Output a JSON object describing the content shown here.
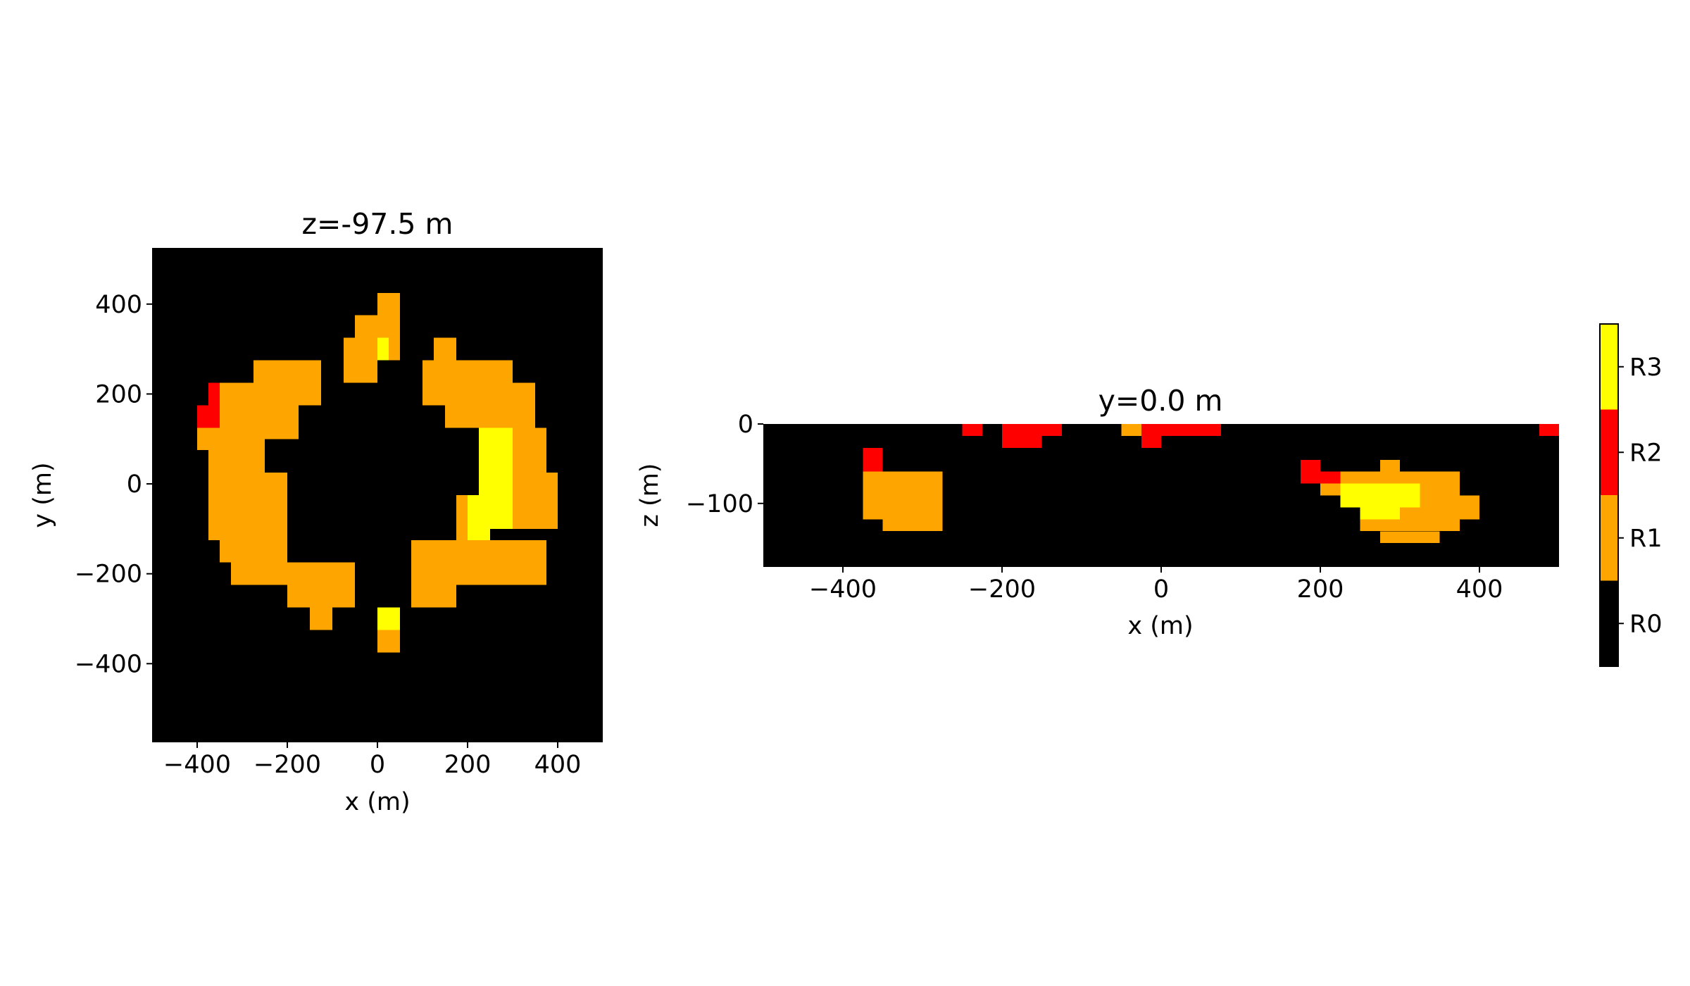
{
  "chart_data": [
    {
      "type": "heatmap",
      "title": "z=-97.5 m",
      "xlabel": "x (m)",
      "ylabel": "y (m)",
      "xlim": [
        -500,
        500
      ],
      "ylim": [
        -575,
        525
      ],
      "xticks": [
        -400,
        -200,
        0,
        200,
        400
      ],
      "yticks": [
        -400,
        -200,
        0,
        200,
        400
      ],
      "cell_size": 50,
      "cells": [
        {
          "x": [
            0,
            50
          ],
          "y": [
            350,
            425
          ],
          "v": 1
        },
        {
          "x": [
            -50,
            50
          ],
          "y": [
            325,
            375
          ],
          "v": 1
        },
        {
          "x": [
            50,
            50
          ],
          "y": [
            325,
            375
          ],
          "v": 1
        },
        {
          "x": [
            -75,
            0
          ],
          "y": [
            225,
            325
          ],
          "v": 1
        },
        {
          "x": [
            0,
            25
          ],
          "y": [
            275,
            325
          ],
          "v": 3
        },
        {
          "x": [
            25,
            50
          ],
          "y": [
            275,
            325
          ],
          "v": 1
        },
        {
          "x": [
            125,
            175
          ],
          "y": [
            275,
            325
          ],
          "v": 1
        },
        {
          "x": [
            100,
            300
          ],
          "y": [
            175,
            275
          ],
          "v": 1
        },
        {
          "x": [
            150,
            350
          ],
          "y": [
            125,
            225
          ],
          "v": 1
        },
        {
          "x": [
            225,
            375
          ],
          "y": [
            0,
            125
          ],
          "v": 1
        },
        {
          "x": [
            300,
            400
          ],
          "y": [
            -100,
            25
          ],
          "v": 1
        },
        {
          "x": [
            225,
            300
          ],
          "y": [
            -100,
            125
          ],
          "v": 3
        },
        {
          "x": [
            175,
            225
          ],
          "y": [
            -125,
            -25
          ],
          "v": 1
        },
        {
          "x": [
            200,
            250
          ],
          "y": [
            -125,
            -25
          ],
          "v": 3
        },
        {
          "x": [
            75,
            375
          ],
          "y": [
            -225,
            -125
          ],
          "v": 1
        },
        {
          "x": [
            75,
            175
          ],
          "y": [
            -275,
            -200
          ],
          "v": 1
        },
        {
          "x": [
            0,
            50
          ],
          "y": [
            -325,
            -275
          ],
          "v": 3
        },
        {
          "x": [
            0,
            50
          ],
          "y": [
            -375,
            -325
          ],
          "v": 1
        },
        {
          "x": [
            -275,
            -125
          ],
          "y": [
            175,
            275
          ],
          "v": 1
        },
        {
          "x": [
            -375,
            -175
          ],
          "y": [
            100,
            225
          ],
          "v": 1
        },
        {
          "x": [
            -400,
            -325
          ],
          "y": [
            75,
            125
          ],
          "v": 1
        },
        {
          "x": [
            -375,
            -250
          ],
          "y": [
            -125,
            100
          ],
          "v": 1
        },
        {
          "x": [
            -250,
            -200
          ],
          "y": [
            -75,
            25
          ],
          "v": 1
        },
        {
          "x": [
            -350,
            -200
          ],
          "y": [
            -175,
            -75
          ],
          "v": 1
        },
        {
          "x": [
            -325,
            -50
          ],
          "y": [
            -225,
            -175
          ],
          "v": 1
        },
        {
          "x": [
            -200,
            -50
          ],
          "y": [
            -275,
            -175
          ],
          "v": 1
        },
        {
          "x": [
            -150,
            -100
          ],
          "y": [
            -325,
            -275
          ],
          "v": 1
        },
        {
          "x": [
            -375,
            -350
          ],
          "y": [
            175,
            225
          ],
          "v": 2
        },
        {
          "x": [
            -400,
            -350
          ],
          "y": [
            125,
            175
          ],
          "v": 2
        }
      ]
    },
    {
      "type": "heatmap",
      "title": "y=0.0 m",
      "xlabel": "x (m)",
      "ylabel": "z (m)",
      "xlim": [
        -500,
        500
      ],
      "ylim": [
        -180,
        0
      ],
      "xticks": [
        -400,
        -200,
        0,
        200,
        400
      ],
      "yticks": [
        -100,
        0
      ],
      "cell_size": 25,
      "cells": [
        {
          "x": [
            -250,
            -225
          ],
          "y": [
            -15,
            0
          ],
          "v": 2
        },
        {
          "x": [
            -200,
            -150
          ],
          "y": [
            -30,
            0
          ],
          "v": 2
        },
        {
          "x": [
            -150,
            -125
          ],
          "y": [
            -15,
            0
          ],
          "v": 2
        },
        {
          "x": [
            -50,
            -25
          ],
          "y": [
            -15,
            0
          ],
          "v": 1
        },
        {
          "x": [
            -25,
            0
          ],
          "y": [
            -30,
            0
          ],
          "v": 2
        },
        {
          "x": [
            0,
            75
          ],
          "y": [
            -15,
            0
          ],
          "v": 2
        },
        {
          "x": [
            475,
            500
          ],
          "y": [
            -15,
            0
          ],
          "v": 2
        },
        {
          "x": [
            -375,
            -350
          ],
          "y": [
            -60,
            -30
          ],
          "v": 2
        },
        {
          "x": [
            -375,
            -275
          ],
          "y": [
            -120,
            -60
          ],
          "v": 1
        },
        {
          "x": [
            -350,
            -275
          ],
          "y": [
            -135,
            -120
          ],
          "v": 1
        },
        {
          "x": [
            175,
            200
          ],
          "y": [
            -75,
            -45
          ],
          "v": 2
        },
        {
          "x": [
            200,
            225
          ],
          "y": [
            -75,
            -60
          ],
          "v": 2
        },
        {
          "x": [
            275,
            300
          ],
          "y": [
            -60,
            -45
          ],
          "v": 1
        },
        {
          "x": [
            225,
            375
          ],
          "y": [
            -75,
            -60
          ],
          "v": 1
        },
        {
          "x": [
            200,
            225
          ],
          "y": [
            -90,
            -75
          ],
          "v": 1
        },
        {
          "x": [
            225,
            325
          ],
          "y": [
            -105,
            -75
          ],
          "v": 1
        },
        {
          "x": [
            325,
            400
          ],
          "y": [
            -120,
            -90
          ],
          "v": 1
        },
        {
          "x": [
            325,
            375
          ],
          "y": [
            -90,
            -75
          ],
          "v": 1
        },
        {
          "x": [
            250,
            375
          ],
          "y": [
            -135,
            -105
          ],
          "v": 1
        },
        {
          "x": [
            275,
            350
          ],
          "y": [
            -150,
            -135
          ],
          "v": 1
        },
        {
          "x": [
            225,
            325
          ],
          "y": [
            -105,
            -75
          ],
          "v": 3
        },
        {
          "x": [
            250,
            300
          ],
          "y": [
            -120,
            -105
          ],
          "v": 3
        }
      ]
    }
  ],
  "colorbar": {
    "categories": [
      "R0",
      "R1",
      "R2",
      "R3"
    ],
    "colors": [
      "#000000",
      "#ffa500",
      "#ff0000",
      "#ffff00"
    ]
  }
}
